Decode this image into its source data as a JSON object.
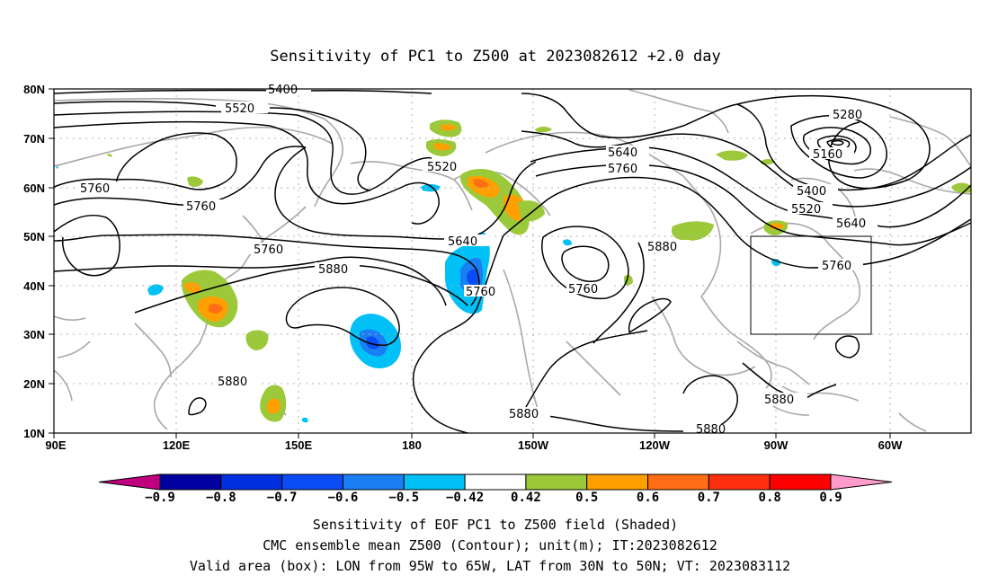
{
  "title": "Sensitivity of PC1 to Z500 at 2023082612 +2.0 day",
  "lat_labels": [
    "80N",
    "70N",
    "60N",
    "50N",
    "40N",
    "30N",
    "20N",
    "10N"
  ],
  "lon_labels": [
    "90E",
    "120E",
    "150E",
    "180",
    "150W",
    "120W",
    "90W",
    "60W"
  ],
  "contour_labels": [
    "5400",
    "5520",
    "5760",
    "5760",
    "5520",
    "5640",
    "5760",
    "5280",
    "5160",
    "5400",
    "5520",
    "5640",
    "5760",
    "5880",
    "5880",
    "5640",
    "5760",
    "5760",
    "5880",
    "5880",
    "5880",
    "5880",
    "5760"
  ],
  "colorbar": {
    "labels": [
      "-0.9",
      "-0.8",
      "-0.7",
      "-0.6",
      "-0.5",
      "-0.42",
      "0.42",
      "0.5",
      "0.6",
      "0.7",
      "0.8",
      "0.9"
    ],
    "colors": [
      "#c0007f",
      "#0000a0",
      "#0030e0",
      "#0a4cf5",
      "#1a7ef5",
      "#00c0f5",
      "#ffffff",
      "#9cc93a",
      "#ffa000",
      "#ff6e14",
      "#ff3010",
      "#ff0000",
      "#ff9ccc"
    ]
  },
  "box": {
    "label": "Valid area (box)",
    "lon_w": 95,
    "lon_e": 65,
    "lat_s": 30,
    "lat_n": 50
  },
  "footer": {
    "line1": "Sensitivity of EOF PC1 to Z500 field (Shaded)",
    "line2": "CMC ensemble mean Z500 (Contour); unit(m); IT:2023082612",
    "line3": "Valid area (box): LON from 95W to 65W, LAT from 30N to 50N; VT: 2023083112"
  }
}
